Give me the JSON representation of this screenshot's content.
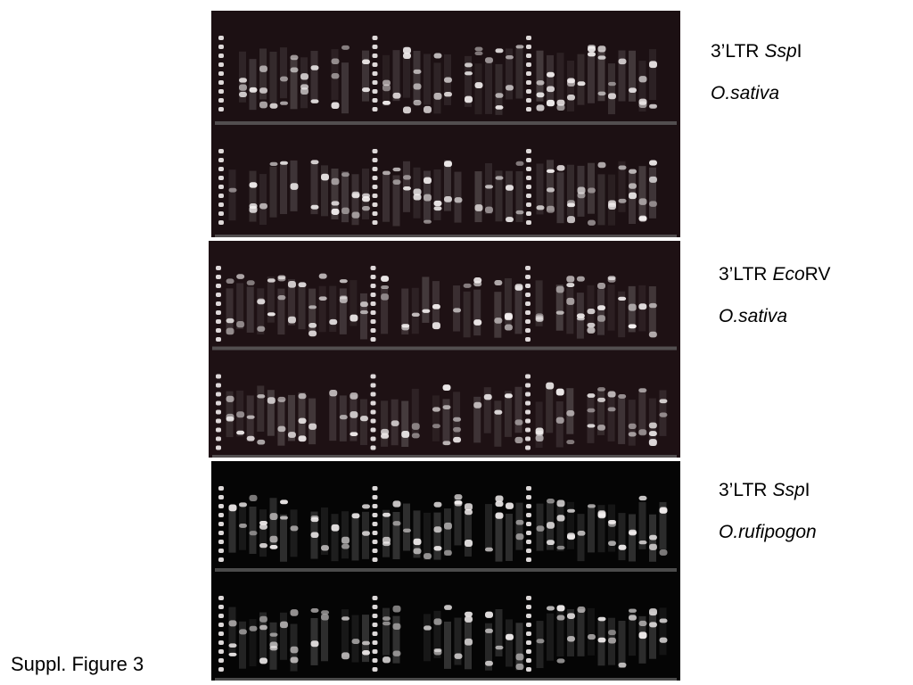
{
  "panels": [
    {
      "locus": "3’LTR",
      "enzyme_italic": "Ssp",
      "enzyme_roman": "I",
      "species": "O.sativa"
    },
    {
      "locus": "3’LTR",
      "enzyme_italic": "Eco",
      "enzyme_roman": "RV",
      "species": "O.sativa"
    },
    {
      "locus": "3’LTR",
      "enzyme_italic": "Ssp",
      "enzyme_roman": "I",
      "species": "O.rufipogon"
    }
  ],
  "footer": "Suppl. Figure 3"
}
